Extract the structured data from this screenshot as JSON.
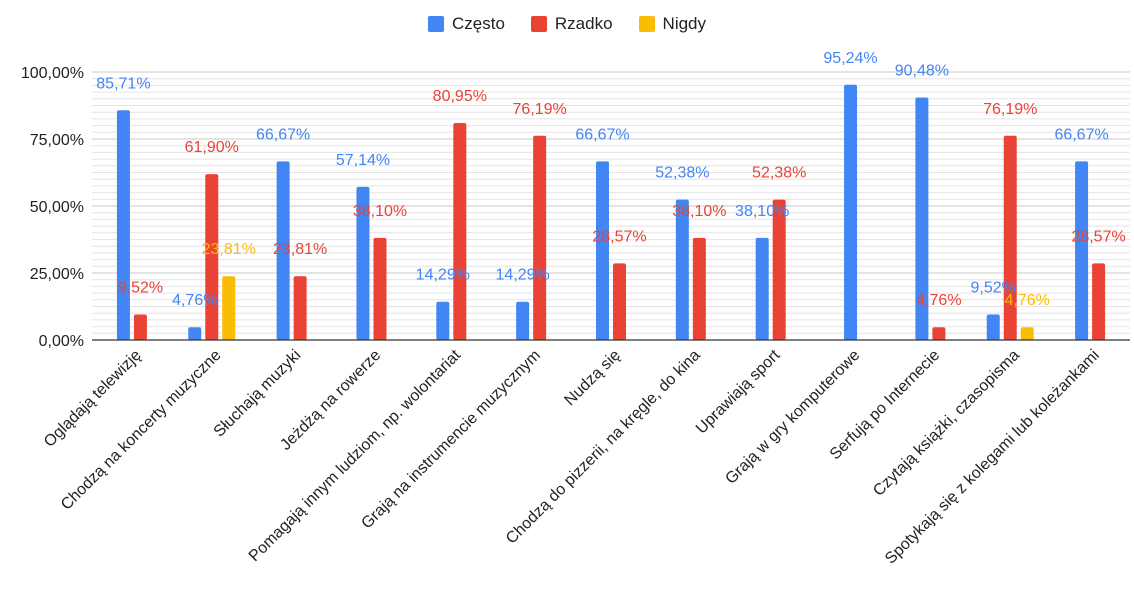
{
  "chart_data": {
    "type": "bar",
    "categories": [
      "Oglądają telewizję",
      "Chodzą na koncerty muzyczne",
      "Słuchają muzyki",
      "Jeżdżą na rowerze",
      "Pomagają innym ludziom, np. wolontariat",
      "Grają na instrumencie muzycznym",
      "Nudzą się",
      "Chodzą do pizzerii, na kręgle, do kina",
      "Uprawiają sport",
      "Grają w gry komputerowe",
      "Serfują po Internecie",
      "Czytają książki, czasopisma",
      "Spotykają się z kolegami lub koleżankami"
    ],
    "series": [
      {
        "name": "Często",
        "color": "#4285F4",
        "values": [
          85.71,
          4.76,
          66.67,
          57.14,
          14.29,
          14.29,
          66.67,
          52.38,
          38.1,
          95.24,
          90.48,
          9.52,
          66.67
        ],
        "labels": [
          "85,71%",
          "4,76%",
          "66,67%",
          "57,14%",
          "14,29%",
          "14,29%",
          "66,67%",
          "52,38%",
          "38,10%",
          "95,24%",
          "90,48%",
          "9,52%",
          "66,67%"
        ]
      },
      {
        "name": "Rzadko",
        "color": "#EA4335",
        "values": [
          9.52,
          61.9,
          23.81,
          38.1,
          80.95,
          76.19,
          28.57,
          38.1,
          52.38,
          0,
          4.76,
          76.19,
          28.57
        ],
        "labels": [
          "9,52%",
          "61,90%",
          "23,81%",
          "38,10%",
          "80,95%",
          "76,19%",
          "28,57%",
          "38,10%",
          "52,38%",
          "",
          "4,76%",
          "76,19%",
          "28,57%"
        ]
      },
      {
        "name": "Nigdy",
        "color": "#FBBC04",
        "values": [
          0,
          23.81,
          0,
          0,
          0,
          0,
          0,
          0,
          0,
          0,
          0,
          4.76,
          0
        ],
        "labels": [
          "",
          "23,81%",
          "",
          "",
          "",
          "",
          "",
          "",
          "",
          "",
          "",
          "4,76%",
          ""
        ]
      }
    ],
    "y_ticks": [
      0,
      25,
      50,
      75,
      100
    ],
    "y_tick_labels": [
      "0,00%",
      "25,00%",
      "50,00%",
      "75,00%",
      "100,00%"
    ],
    "ylim": [
      0,
      100
    ],
    "title": "",
    "xlabel": "",
    "ylabel": "",
    "grid": true,
    "legend_position": "top"
  }
}
